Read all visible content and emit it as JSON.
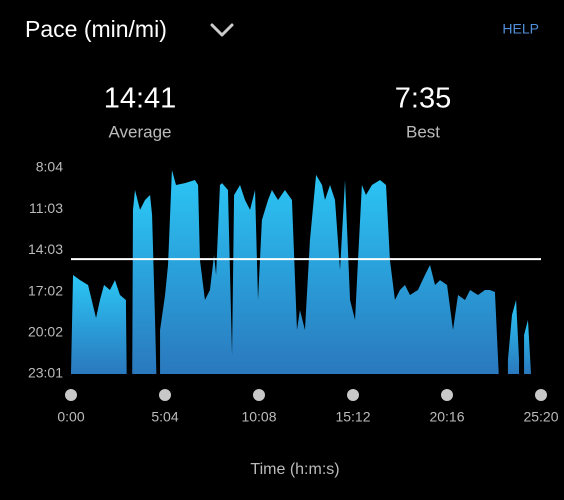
{
  "chart_data": {
    "type": "area",
    "title": "Pace (min/mi)",
    "help": "HELP",
    "average": {
      "value": 14.683,
      "label": "14:41"
    },
    "average_caption": "Average",
    "best": {
      "value": 7.583,
      "label": "7:35"
    },
    "best_caption": "Best",
    "xlabel": "Time (h:m:s)",
    "colors": [
      "#2bc7f6",
      "#2a78bd"
    ],
    "line_color": "#ffffff",
    "xlim": [
      0,
      25.333
    ],
    "xticks": [
      {
        "value": 0,
        "label": "0:00"
      },
      {
        "value": 5.0667,
        "label": "5:04"
      },
      {
        "value": 10.1333,
        "label": "10:08"
      },
      {
        "value": 15.2,
        "label": "15:12"
      },
      {
        "value": 20.2667,
        "label": "20:16"
      },
      {
        "value": 25.333,
        "label": "25:20"
      }
    ],
    "ylim": [
      23.0167,
      8.0667
    ],
    "yticks": [
      {
        "value": 8.0667,
        "label": "8:04"
      },
      {
        "value": 11.05,
        "label": "11:03"
      },
      {
        "value": 14.05,
        "label": "14:03"
      },
      {
        "value": 17.0333,
        "label": "17:02"
      },
      {
        "value": 20.0333,
        "label": "20:02"
      },
      {
        "value": 23.0167,
        "label": "23:01"
      }
    ],
    "x": [
      0,
      0.11,
      0.49,
      0.92,
      1.35,
      1.56,
      1.78,
      2.1,
      2.37,
      2.64,
      2.96,
      3.0,
      3.15,
      3.3,
      3.34,
      3.45,
      3.72,
      3.99,
      4.26,
      4.37,
      4.53,
      4.6,
      4.7,
      4.8,
      5.07,
      5.23,
      5.44,
      5.66,
      6.14,
      6.68,
      6.85,
      6.95,
      7.22,
      7.49,
      7.71,
      7.82,
      8.03,
      8.14,
      8.46,
      8.68,
      8.79,
      9.11,
      9.38,
      9.65,
      9.92,
      10.08,
      10.29,
      10.62,
      10.83,
      11.16,
      11.53,
      11.91,
      12.18,
      12.34,
      12.61,
      12.88,
      13.21,
      13.53,
      13.69,
      13.96,
      14.23,
      14.5,
      14.77,
      15.04,
      15.31,
      15.47,
      15.68,
      15.9,
      16.22,
      16.66,
      16.98,
      17.19,
      17.46,
      17.73,
      18.0,
      18.27,
      18.7,
      19.08,
      19.35,
      19.62,
      19.89,
      20.27,
      20.59,
      20.86,
      21.24,
      21.51,
      21.94,
      22.31,
      22.58,
      22.85,
      23.02,
      23.05,
      23.3,
      23.55,
      23.77,
      23.99,
      24.15,
      24.3,
      24.42,
      24.63,
      24.79
    ],
    "values": [
      22.9,
      15.83,
      16.2,
      16.56,
      18.95,
      17.65,
      16.56,
      16.92,
      16.2,
      17.28,
      17.65,
      22.9,
      null,
      22.9,
      11.11,
      9.66,
      11.11,
      10.39,
      10.03,
      11.48,
      19.1,
      22.9,
      null,
      19.82,
      17.28,
      15.11,
      8.21,
      9.3,
      9.16,
      8.94,
      9.3,
      14.74,
      17.65,
      16.92,
      14.38,
      15.83,
      9.3,
      9.16,
      9.66,
      21.64,
      10.03,
      9.3,
      10.39,
      11.11,
      9.66,
      17.65,
      11.84,
      10.39,
      9.66,
      10.39,
      9.66,
      10.39,
      19.82,
      18.37,
      19.82,
      13.29,
      8.57,
      9.3,
      10.39,
      9.3,
      10.39,
      15.47,
      8.94,
      17.65,
      19.1,
      14.74,
      9.3,
      10.03,
      9.3,
      8.94,
      9.3,
      14.74,
      17.65,
      16.92,
      16.56,
      17.28,
      16.92,
      15.83,
      15.11,
      16.56,
      16.2,
      16.56,
      19.82,
      17.28,
      17.65,
      16.92,
      17.28,
      16.92,
      16.92,
      17.07,
      22.0,
      22.9,
      null,
      22.0,
      18.73,
      17.65,
      22.0,
      null,
      20.19,
      19.1,
      22.9
    ]
  }
}
